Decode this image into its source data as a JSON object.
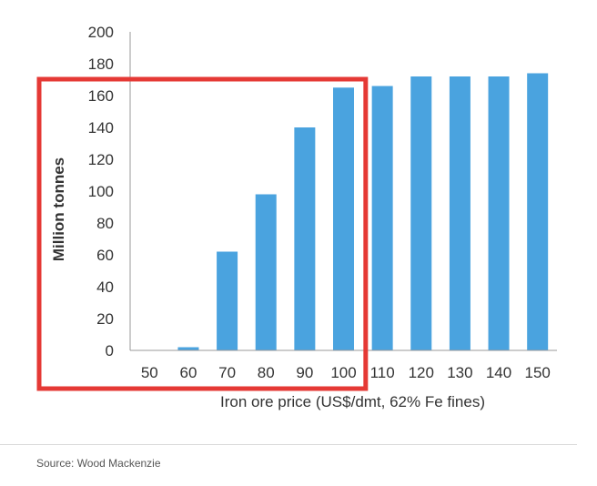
{
  "chart_data": {
    "type": "bar",
    "categories": [
      "50",
      "60",
      "70",
      "80",
      "90",
      "100",
      "110",
      "120",
      "130",
      "140",
      "150"
    ],
    "values": [
      0,
      2,
      62,
      98,
      140,
      165,
      166,
      172,
      172,
      172,
      174
    ],
    "title": "",
    "xlabel": "Iron ore price (US$/dmt, 62% Fe fines)",
    "ylabel": "Million tonnes",
    "ylim": [
      0,
      200
    ],
    "yticks": [
      "0",
      "20",
      "40",
      "60",
      "80",
      "100",
      "120",
      "140",
      "160",
      "180",
      "200"
    ],
    "grid": false,
    "legend": "none",
    "bar_color": "#4aa3df",
    "axis_color": "#999999",
    "highlight": {
      "shape": "rectangle",
      "color": "#e53935",
      "from_category": "50",
      "to_category": "100"
    }
  },
  "source": {
    "text": "Source:  Wood Mackenzie"
  }
}
